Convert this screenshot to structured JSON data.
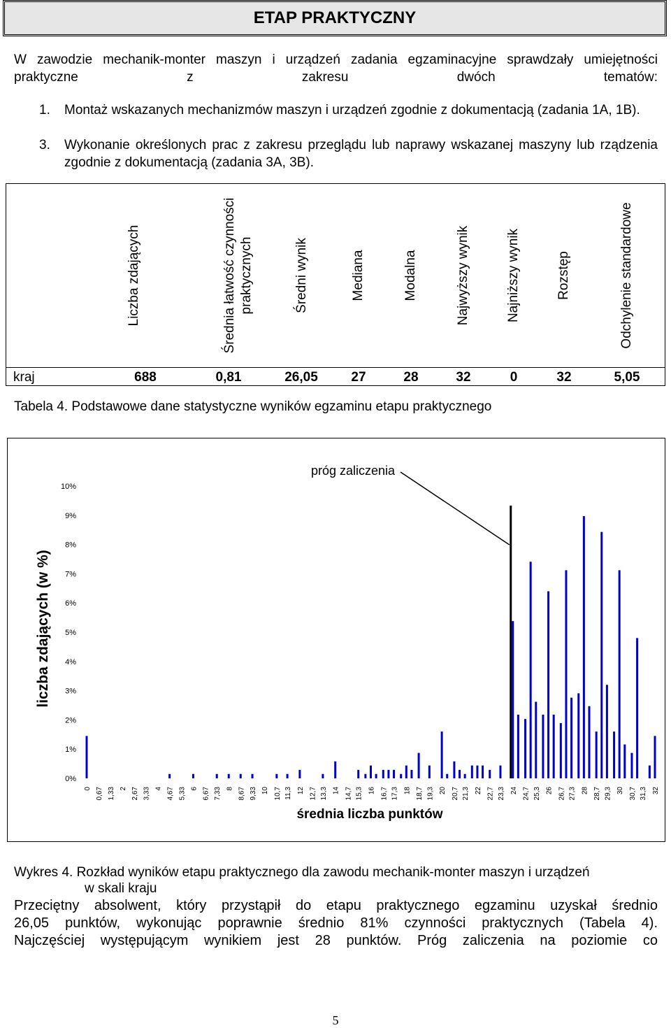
{
  "header": {
    "title": "ETAP PRAKTYCZNY"
  },
  "intro": {
    "text": "W zawodzie mechanik-monter maszyn i urządzeń zadania egzaminacyjne sprawdzały umiejętności praktyczne z zakresu dwóch tematów:",
    "items": [
      {
        "num": "1.",
        "text": "Montaż wskazanych mechanizmów maszyn i urządzeń zgodnie z dokumentacją (zadania 1A, 1B)."
      },
      {
        "num": "3.",
        "text": "Wykonanie określonych prac z zakresu przeglądu lub naprawy wskazanej maszyny lub rządzenia zgodnie z dokumentacją (zadania 3A, 3B)."
      }
    ]
  },
  "stats_table": {
    "headers": [
      "Liczba zdających",
      "Średnia łatwość czynności praktycznych",
      "Średni wynik",
      "Mediana",
      "Modalna",
      "Najwyższy wynik",
      "Najniższy wynik",
      "Rozstęp",
      "Odchylenie standardowe"
    ],
    "row": {
      "label": "kraj",
      "values": [
        "688",
        "0,81",
        "26,05",
        "27",
        "28",
        "32",
        "0",
        "32",
        "5,05"
      ]
    }
  },
  "table_caption": {
    "label": "Tabela 4.",
    "text": "Podstawowe dane statystyczne wyników egzaminu etapu praktycznego"
  },
  "chart_data": {
    "type": "bar",
    "title": "",
    "xlabel": "średnia liczba punktów",
    "ylabel": "liczba zdających (w %)",
    "ylim": [
      0,
      10
    ],
    "yticks": [
      "0%",
      "1%",
      "2%",
      "3%",
      "4%",
      "5%",
      "6%",
      "7%",
      "8%",
      "9%",
      "10%"
    ],
    "annotation": "próg zaliczenia",
    "threshold_x": "24",
    "categories": [
      "0",
      "0,67",
      "1,33",
      "2",
      "2,67",
      "3,33",
      "4",
      "4,67",
      "5,33",
      "6",
      "6,67",
      "7,33",
      "8",
      "8,67",
      "9,33",
      "10",
      "10,7",
      "11,3",
      "12",
      "12,7",
      "13,3",
      "14",
      "14,7",
      "15,3",
      "16",
      "16,7",
      "17,3",
      "18",
      "18,7",
      "19,3",
      "20",
      "20,7",
      "21,3",
      "22",
      "22,7",
      "23,3",
      "24",
      "24,7",
      "25,3",
      "26",
      "26,7",
      "27,3",
      "28",
      "28,7",
      "29,3",
      "30",
      "30,7",
      "31,3",
      "32"
    ],
    "bars": [
      {
        "x": "0",
        "y": 1.45
      },
      {
        "x": "4,67",
        "y": 0.15
      },
      {
        "x": "6",
        "y": 0.15
      },
      {
        "x": "7,33",
        "y": 0.15
      },
      {
        "x": "8",
        "y": 0.15
      },
      {
        "x": "8,67",
        "y": 0.15
      },
      {
        "x": "9,33",
        "y": 0.15
      },
      {
        "x": "10,7",
        "y": 0.15
      },
      {
        "x": "11,3",
        "y": 0.15
      },
      {
        "x": "12",
        "y": 0.29
      },
      {
        "x": "13,3",
        "y": 0.15
      },
      {
        "x": "14",
        "y": 0.58
      },
      {
        "x": "15,3",
        "y": 0.29
      },
      {
        "x": "15,7",
        "y": 0.15
      },
      {
        "x": "16",
        "y": 0.44
      },
      {
        "x": "16,3",
        "y": 0.15
      },
      {
        "x": "16,7",
        "y": 0.29
      },
      {
        "x": "17",
        "y": 0.29
      },
      {
        "x": "17,3",
        "y": 0.29
      },
      {
        "x": "17,7",
        "y": 0.15
      },
      {
        "x": "18",
        "y": 0.44
      },
      {
        "x": "18,3",
        "y": 0.29
      },
      {
        "x": "18,7",
        "y": 0.87
      },
      {
        "x": "19,3",
        "y": 0.44
      },
      {
        "x": "20",
        "y": 1.6
      },
      {
        "x": "20,3",
        "y": 0.15
      },
      {
        "x": "20,7",
        "y": 0.58
      },
      {
        "x": "21",
        "y": 0.29
      },
      {
        "x": "21,3",
        "y": 0.15
      },
      {
        "x": "21,7",
        "y": 0.44
      },
      {
        "x": "22",
        "y": 0.44
      },
      {
        "x": "22,3",
        "y": 0.44
      },
      {
        "x": "22,7",
        "y": 0.29
      },
      {
        "x": "23,3",
        "y": 0.44
      },
      {
        "x": "24",
        "y": 5.38
      },
      {
        "x": "24,3",
        "y": 2.18
      },
      {
        "x": "24,7",
        "y": 2.03
      },
      {
        "x": "25",
        "y": 7.41
      },
      {
        "x": "25,3",
        "y": 2.62
      },
      {
        "x": "25,7",
        "y": 2.18
      },
      {
        "x": "26",
        "y": 6.4
      },
      {
        "x": "26,3",
        "y": 2.18
      },
      {
        "x": "26,7",
        "y": 1.89
      },
      {
        "x": "27",
        "y": 7.12
      },
      {
        "x": "27,3",
        "y": 2.76
      },
      {
        "x": "27,7",
        "y": 2.91
      },
      {
        "x": "28",
        "y": 8.97
      },
      {
        "x": "28,3",
        "y": 2.47
      },
      {
        "x": "28,7",
        "y": 1.6
      },
      {
        "x": "29",
        "y": 8.43
      },
      {
        "x": "29,3",
        "y": 3.2
      },
      {
        "x": "29,7",
        "y": 1.6
      },
      {
        "x": "30",
        "y": 7.12
      },
      {
        "x": "30,3",
        "y": 1.16
      },
      {
        "x": "30,7",
        "y": 0.87
      },
      {
        "x": "31",
        "y": 4.8
      },
      {
        "x": "31,7",
        "y": 0.44
      },
      {
        "x": "32",
        "y": 1.45
      }
    ],
    "grid": false,
    "bar_color": "#0000cc"
  },
  "chart_caption": {
    "label": "Wykres 4.",
    "text": "Rozkład wyników etapu praktycznego dla zawodu mechanik-monter maszyn i urządzeń",
    "text2": "w skali kraju"
  },
  "summary": {
    "line1": "Przeciętny absolwent, który przystąpił do etapu praktycznego egzaminu uzyskał średnio",
    "line2": "26,05 punktów, wykonując poprawnie średnio 81% czynności praktycznych (Tabela 4).",
    "line3": "Najczęściej występującym wynikiem jest 28 punktów. Próg zaliczenia na poziomie co"
  },
  "page_number": "5"
}
